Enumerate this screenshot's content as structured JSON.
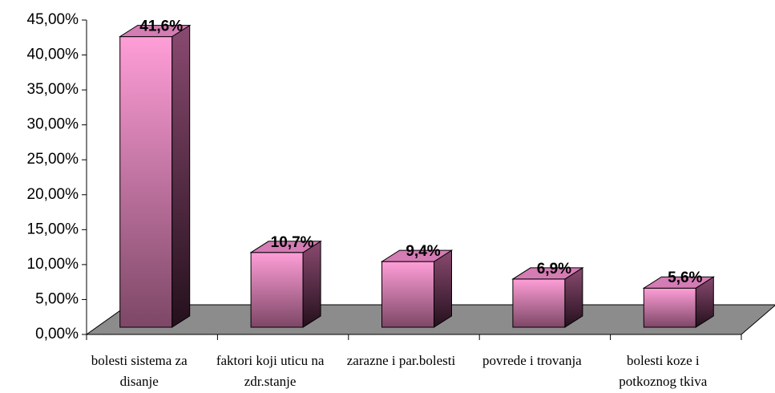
{
  "chart_data": {
    "type": "bar3d",
    "categories": [
      "bolesti sistema za disanje",
      "faktori koji uticu na zdr.stanje",
      "zarazne i par.bolesti",
      "povrede i trovanja",
      "bolesti koze i potkoznog tkiva"
    ],
    "values": [
      41.6,
      10.7,
      9.4,
      6.9,
      5.6
    ],
    "value_labels": [
      "41,6%",
      "10,7%",
      "9,4%",
      "6,9%",
      "5,6%"
    ],
    "color": "#ff9ed8",
    "ylim": [
      0,
      45
    ],
    "yticks": [
      {
        "value": 0,
        "label": "0,00%"
      },
      {
        "value": 5,
        "label": "5,00%"
      },
      {
        "value": 10,
        "label": "10,00%"
      },
      {
        "value": 15,
        "label": "15,00%"
      },
      {
        "value": 20,
        "label": "20,00%"
      },
      {
        "value": 25,
        "label": "25,00%"
      },
      {
        "value": 30,
        "label": "30,00%"
      },
      {
        "value": 35,
        "label": "35,00%"
      },
      {
        "value": 40,
        "label": "40,00%"
      },
      {
        "value": 45,
        "label": "45,00%"
      }
    ],
    "grid": false
  }
}
